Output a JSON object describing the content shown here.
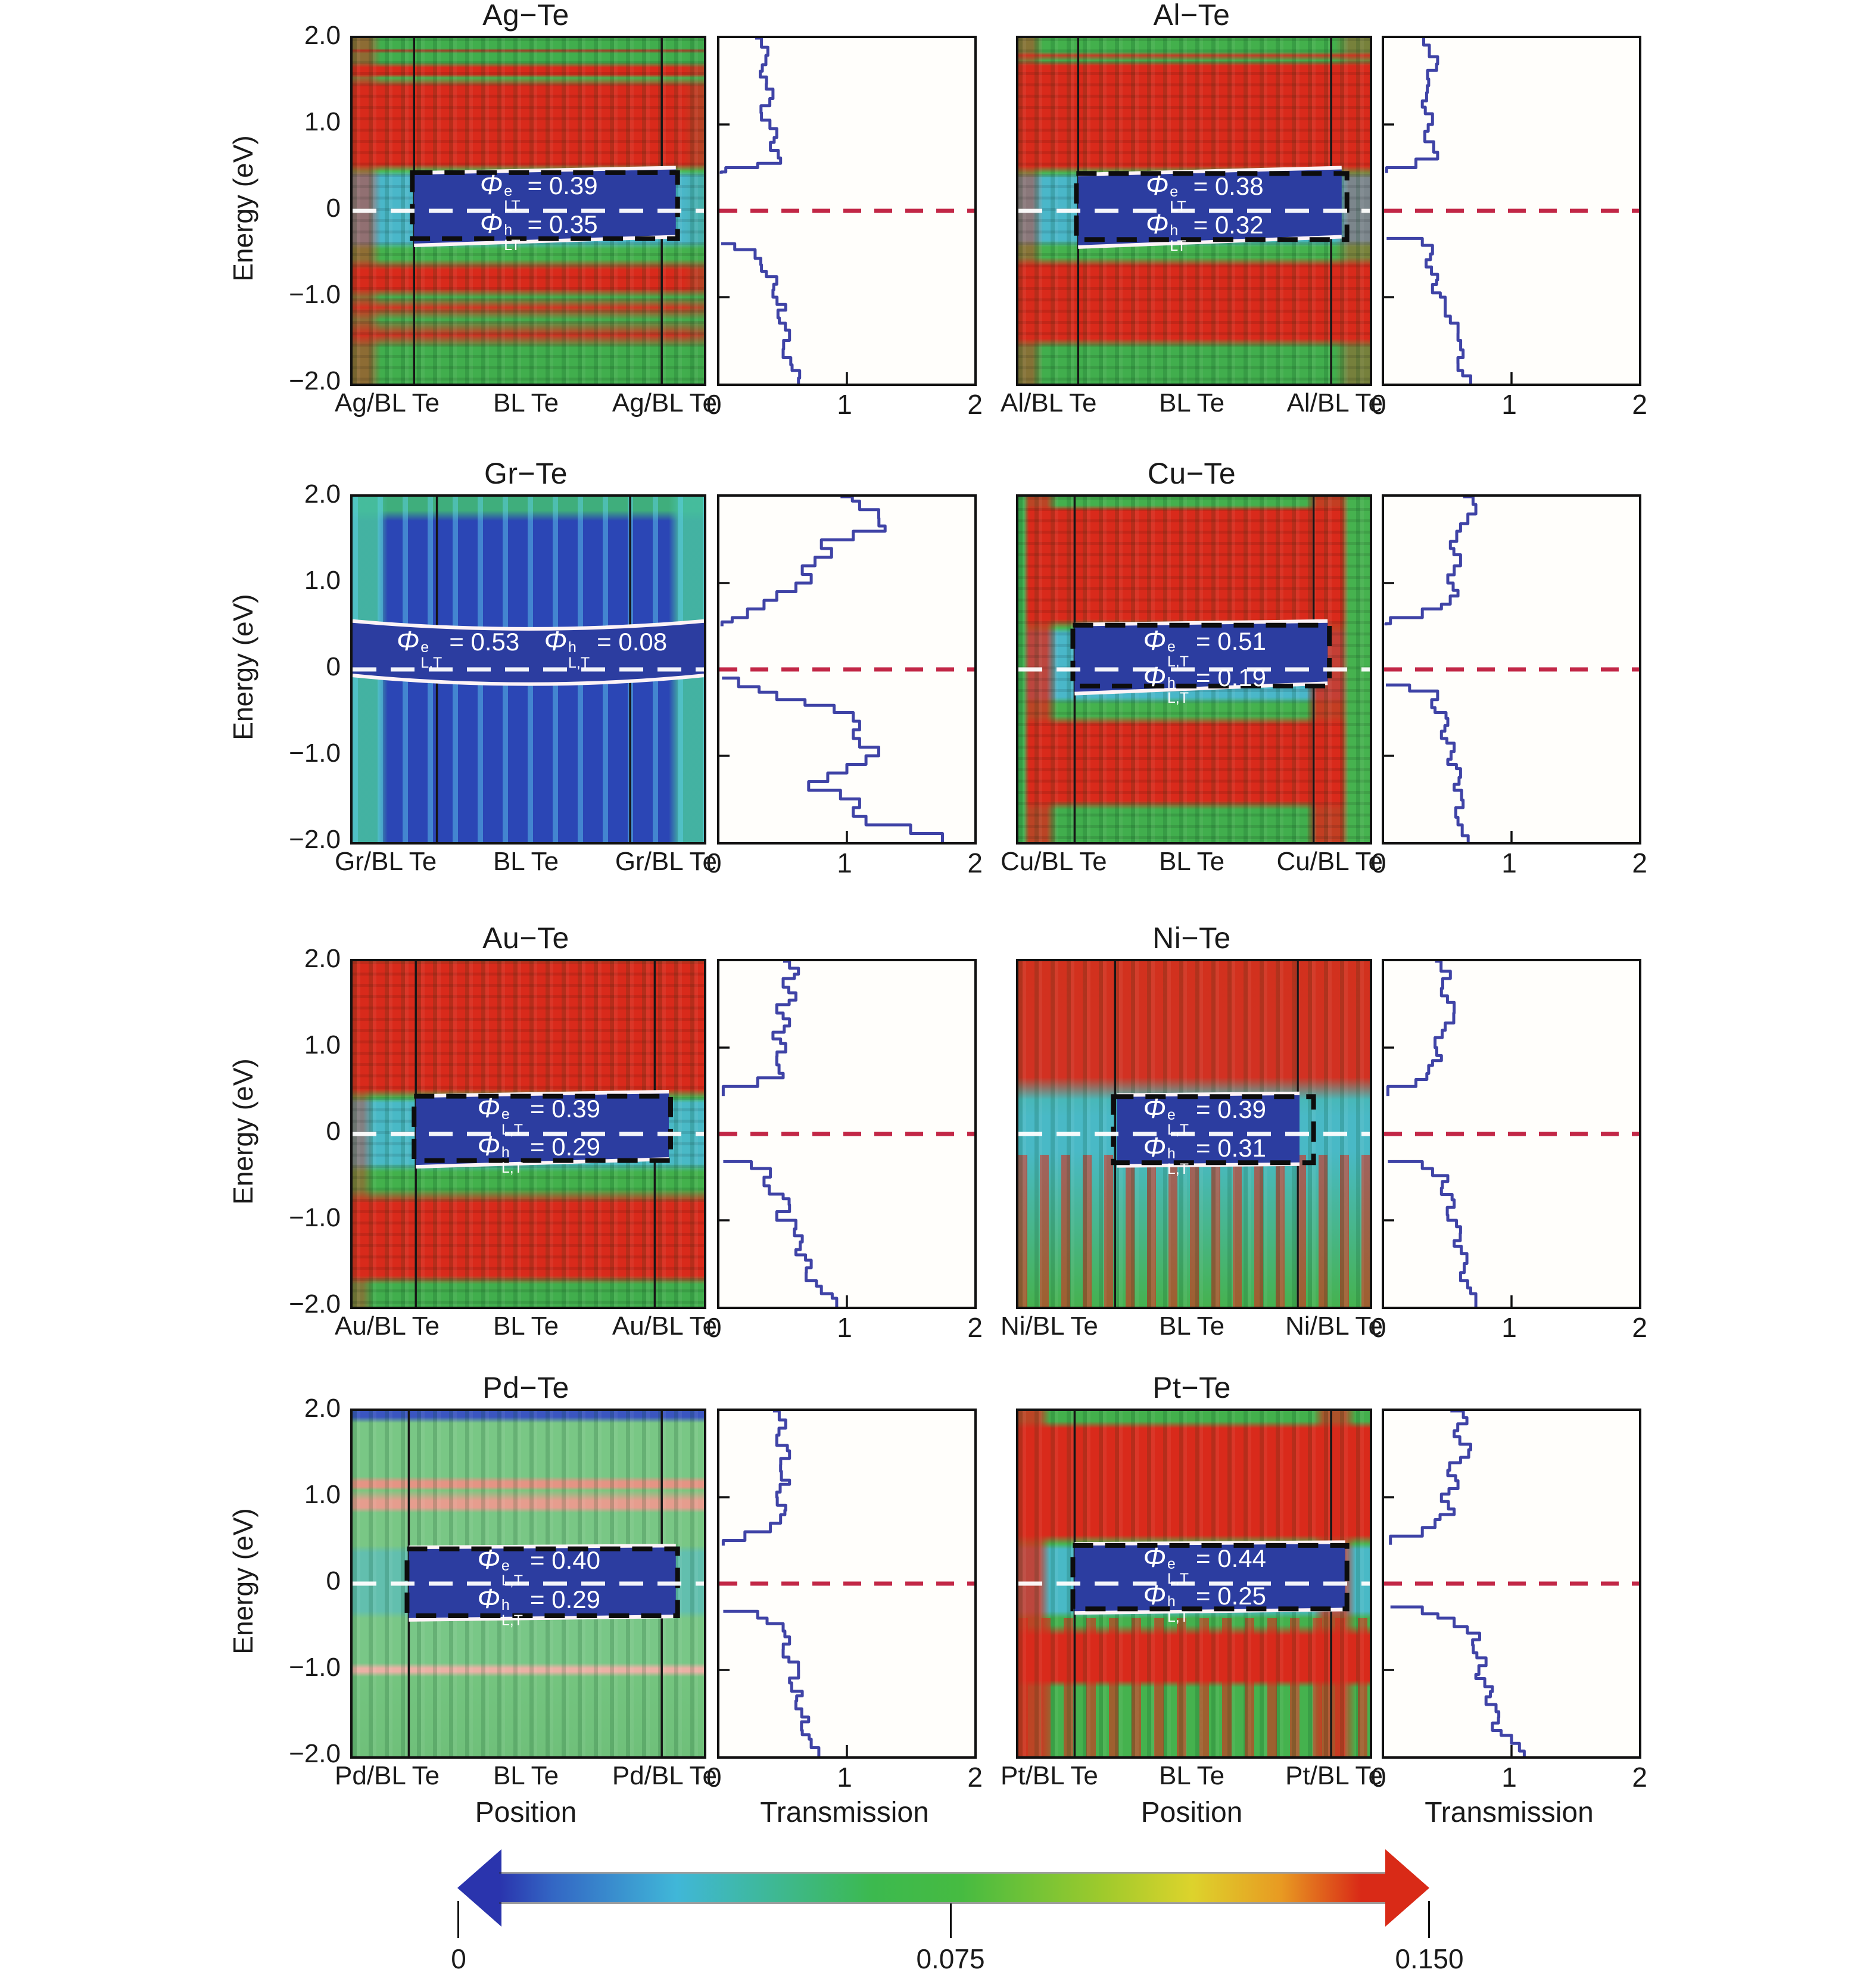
{
  "figure": {
    "position_caption": "Position",
    "transmission_caption": "Transmission"
  },
  "chart_data": {
    "type": "heatmap",
    "description": "Projected local density of states (position vs energy, color = DOS 0 to 0.150) with tunneling-barrier annotations and zero-bias transmission spectra for eight metal/bilayer-tellurene junctions.",
    "energy_axis": {
      "label": "Energy (eV)",
      "range": [
        -2,
        2
      ],
      "ticks": [
        "2.0",
        "1.0",
        "0",
        "−1.0",
        "−2.0"
      ]
    },
    "position_axis": {
      "label": "Position"
    },
    "transmission_axis": {
      "label": "Transmission",
      "range": [
        0,
        2
      ],
      "ticks": [
        "0",
        "1",
        "2"
      ]
    },
    "colorbar": {
      "min": 0,
      "mid": 0.075,
      "max": 0.15,
      "ticks": [
        "0",
        "0.075",
        "0.150"
      ]
    },
    "panels": [
      {
        "id": "ag",
        "title": "Ag−Te",
        "x_labels": [
          "Ag/BL Te",
          "BL Te",
          "Ag/BL Te"
        ],
        "phi_e": {
          "sym": "Φ",
          "sup": "e",
          "sub": "LT",
          "eq": "= 0.39",
          "value": 0.39
        },
        "phi_h": {
          "sym": "Φ",
          "sup": "h",
          "sub": "LT",
          "eq": "= 0.35",
          "value": 0.35
        },
        "interfaces": [
          0.175,
          0.88
        ],
        "band": {
          "x0": 0.175,
          "x1": 0.92,
          "top": [
            0.44,
            0.5
          ],
          "bottom": [
            -0.4,
            -0.3
          ],
          "box": true
        },
        "transmission_upper": [
          [
            2,
            0.28
          ],
          [
            1.8,
            0.38
          ],
          [
            1.55,
            0.32
          ],
          [
            1.3,
            0.42
          ],
          [
            1.05,
            0.33
          ],
          [
            0.85,
            0.45
          ],
          [
            0.7,
            0.4
          ],
          [
            0.55,
            0.48
          ],
          [
            0.5,
            0.3
          ],
          [
            0.45,
            0.05
          ],
          [
            0.43,
            0.0
          ]
        ],
        "transmission_lower": [
          [
            -0.38,
            0.0
          ],
          [
            -0.45,
            0.12
          ],
          [
            -0.55,
            0.28
          ],
          [
            -0.7,
            0.33
          ],
          [
            -0.85,
            0.45
          ],
          [
            -1.0,
            0.42
          ],
          [
            -1.15,
            0.52
          ],
          [
            -1.3,
            0.47
          ],
          [
            -1.5,
            0.55
          ],
          [
            -1.7,
            0.5
          ],
          [
            -1.85,
            0.57
          ],
          [
            -2,
            0.62
          ]
        ]
      },
      {
        "id": "al",
        "title": "Al−Te",
        "x_labels": [
          "Al/BL Te",
          "BL Te",
          "Al/BL Te"
        ],
        "phi_e": {
          "sym": "Φ",
          "sup": "e",
          "sub": "LT",
          "eq": "= 0.38",
          "value": 0.38
        },
        "phi_h": {
          "sym": "Φ",
          "sup": "h",
          "sub": "LT",
          "eq": "= 0.32",
          "value": 0.32
        },
        "interfaces": [
          0.17,
          0.89
        ],
        "band": {
          "x0": 0.17,
          "x1": 0.92,
          "top": [
            0.42,
            0.5
          ],
          "bottom": [
            -0.42,
            -0.3
          ],
          "box": true
        },
        "transmission_upper": [
          [
            2,
            0.3
          ],
          [
            1.7,
            0.42
          ],
          [
            1.45,
            0.35
          ],
          [
            1.2,
            0.3
          ],
          [
            1.0,
            0.38
          ],
          [
            0.8,
            0.32
          ],
          [
            0.6,
            0.42
          ],
          [
            0.5,
            0.25
          ],
          [
            0.44,
            0.02
          ]
        ],
        "transmission_lower": [
          [
            -0.32,
            0.02
          ],
          [
            -0.4,
            0.3
          ],
          [
            -0.5,
            0.38
          ],
          [
            -0.65,
            0.33
          ],
          [
            -0.8,
            0.42
          ],
          [
            -0.95,
            0.38
          ],
          [
            -1.1,
            0.48
          ],
          [
            -1.3,
            0.52
          ],
          [
            -1.5,
            0.58
          ],
          [
            -1.7,
            0.62
          ],
          [
            -1.85,
            0.58
          ],
          [
            -2,
            0.68
          ]
        ]
      },
      {
        "id": "gr",
        "title": "Gr−Te",
        "x_labels": [
          "Gr/BL Te",
          "BL Te",
          "Gr/BL Te"
        ],
        "phi_e": {
          "sym": "Φ",
          "sup": "e",
          "sub": "L,T",
          "eq": "= 0.53",
          "value": 0.53
        },
        "phi_h": {
          "sym": "Φ",
          "sup": "h",
          "sub": "L,T",
          "eq": "= 0.08",
          "value": 0.08
        },
        "interfaces": [
          0.24,
          0.79
        ],
        "band": {
          "x0": 0,
          "x1": 1,
          "top": [
            0.56,
            0.47,
            0.56
          ],
          "bottom": [
            -0.07,
            -0.17,
            -0.07
          ],
          "curved": true,
          "box": false,
          "side_by_side": true
        },
        "transmission_upper": [
          [
            2,
            0.95
          ],
          [
            1.85,
            1.1
          ],
          [
            1.75,
            1.25
          ],
          [
            1.6,
            1.3
          ],
          [
            1.5,
            1.05
          ],
          [
            1.4,
            0.8
          ],
          [
            1.3,
            0.88
          ],
          [
            1.2,
            0.75
          ],
          [
            1.1,
            0.65
          ],
          [
            1.0,
            0.72
          ],
          [
            0.9,
            0.6
          ],
          [
            0.8,
            0.45
          ],
          [
            0.7,
            0.35
          ],
          [
            0.6,
            0.22
          ],
          [
            0.55,
            0.1
          ],
          [
            0.5,
            0.02
          ]
        ],
        "transmission_lower": [
          [
            -0.1,
            0.02
          ],
          [
            -0.2,
            0.15
          ],
          [
            -0.35,
            0.45
          ],
          [
            -0.5,
            0.9
          ],
          [
            -0.6,
            1.05
          ],
          [
            -0.7,
            1.1
          ],
          [
            -0.8,
            1.05
          ],
          [
            -0.9,
            1.1
          ],
          [
            -1.0,
            1.25
          ],
          [
            -1.1,
            1.15
          ],
          [
            -1.2,
            1.0
          ],
          [
            -1.3,
            0.85
          ],
          [
            -1.4,
            0.7
          ],
          [
            -1.5,
            0.95
          ],
          [
            -1.6,
            1.1
          ],
          [
            -1.7,
            1.05
          ],
          [
            -1.8,
            1.15
          ],
          [
            -1.9,
            1.5
          ],
          [
            -2,
            1.75
          ]
        ]
      },
      {
        "id": "cu",
        "title": "Cu−Te",
        "x_labels": [
          "Cu/BL Te",
          "BL Te",
          "Cu/BL Te"
        ],
        "phi_e": {
          "sym": "Φ",
          "sup": "e",
          "sub": "L,T",
          "eq": "= 0.51",
          "value": 0.51
        },
        "phi_h": {
          "sym": "Φ",
          "sup": "h",
          "sub": "L,T",
          "eq": "= 0.19",
          "value": 0.19
        },
        "interfaces": [
          0.16,
          0.84
        ],
        "band": {
          "x0": 0.16,
          "x1": 0.88,
          "top": [
            0.52,
            0.56
          ],
          "bottom": [
            -0.28,
            -0.16
          ],
          "box": true
        },
        "transmission_upper": [
          [
            2,
            0.62
          ],
          [
            1.8,
            0.72
          ],
          [
            1.6,
            0.6
          ],
          [
            1.4,
            0.52
          ],
          [
            1.2,
            0.6
          ],
          [
            1.0,
            0.5
          ],
          [
            0.85,
            0.58
          ],
          [
            0.7,
            0.45
          ],
          [
            0.6,
            0.3
          ],
          [
            0.53,
            0.05
          ],
          [
            0.51,
            0.0
          ]
        ],
        "transmission_lower": [
          [
            -0.18,
            0.0
          ],
          [
            -0.25,
            0.2
          ],
          [
            -0.35,
            0.42
          ],
          [
            -0.5,
            0.4
          ],
          [
            -0.65,
            0.5
          ],
          [
            -0.8,
            0.45
          ],
          [
            -0.95,
            0.55
          ],
          [
            -1.1,
            0.5
          ],
          [
            -1.25,
            0.6
          ],
          [
            -1.4,
            0.55
          ],
          [
            -1.6,
            0.62
          ],
          [
            -1.8,
            0.58
          ],
          [
            -2,
            0.66
          ]
        ]
      },
      {
        "id": "au",
        "title": "Au−Te",
        "x_labels": [
          "Au/BL Te",
          "BL Te",
          "Au/BL Te"
        ],
        "phi_e": {
          "sym": "Φ",
          "sup": "e",
          "sub": "L,T",
          "eq": "= 0.39",
          "value": 0.39
        },
        "phi_h": {
          "sym": "Φ",
          "sup": "h",
          "sub": "L,T",
          "eq": "= 0.29",
          "value": 0.29
        },
        "interfaces": [
          0.18,
          0.86
        ],
        "band": {
          "x0": 0.18,
          "x1": 0.9,
          "top": [
            0.44,
            0.49
          ],
          "bottom": [
            -0.38,
            -0.29
          ],
          "box": true
        },
        "transmission_upper": [
          [
            2,
            0.5
          ],
          [
            1.85,
            0.62
          ],
          [
            1.7,
            0.5
          ],
          [
            1.55,
            0.6
          ],
          [
            1.4,
            0.45
          ],
          [
            1.25,
            0.55
          ],
          [
            1.1,
            0.42
          ],
          [
            0.95,
            0.52
          ],
          [
            0.8,
            0.45
          ],
          [
            0.65,
            0.5
          ],
          [
            0.55,
            0.3
          ],
          [
            0.44,
            0.03
          ]
        ],
        "transmission_lower": [
          [
            -0.32,
            0.03
          ],
          [
            -0.4,
            0.25
          ],
          [
            -0.5,
            0.4
          ],
          [
            -0.6,
            0.35
          ],
          [
            -0.75,
            0.5
          ],
          [
            -0.9,
            0.55
          ],
          [
            -1.0,
            0.45
          ],
          [
            -1.1,
            0.6
          ],
          [
            -1.25,
            0.65
          ],
          [
            -1.4,
            0.6
          ],
          [
            -1.55,
            0.72
          ],
          [
            -1.7,
            0.68
          ],
          [
            -1.85,
            0.8
          ],
          [
            -2,
            0.92
          ]
        ]
      },
      {
        "id": "ni",
        "title": "Ni−Te",
        "x_labels": [
          "Ni/BL Te",
          "BL Te",
          "Ni/BL Te"
        ],
        "phi_e": {
          "sym": "Φ",
          "sup": "e",
          "sub": "L,T",
          "eq": "= 0.39",
          "value": 0.39
        },
        "phi_h": {
          "sym": "Φ",
          "sup": "h",
          "sub": "L,T",
          "eq": "= 0.31",
          "value": 0.31
        },
        "interfaces": [
          0.275,
          0.795
        ],
        "band": {
          "x0": 0.28,
          "x1": 0.8,
          "top": [
            0.45,
            0.47
          ],
          "bottom": [
            -0.37,
            -0.35
          ],
          "box": true
        },
        "transmission_upper": [
          [
            2,
            0.4
          ],
          [
            1.8,
            0.52
          ],
          [
            1.6,
            0.45
          ],
          [
            1.4,
            0.55
          ],
          [
            1.2,
            0.48
          ],
          [
            1.0,
            0.4
          ],
          [
            0.85,
            0.45
          ],
          [
            0.7,
            0.35
          ],
          [
            0.55,
            0.25
          ],
          [
            0.44,
            0.03
          ]
        ],
        "transmission_lower": [
          [
            -0.32,
            0.03
          ],
          [
            -0.4,
            0.3
          ],
          [
            -0.55,
            0.5
          ],
          [
            -0.7,
            0.45
          ],
          [
            -0.85,
            0.55
          ],
          [
            -1.0,
            0.5
          ],
          [
            -1.15,
            0.6
          ],
          [
            -1.3,
            0.55
          ],
          [
            -1.5,
            0.65
          ],
          [
            -1.7,
            0.6
          ],
          [
            -1.85,
            0.68
          ],
          [
            -2,
            0.72
          ]
        ]
      },
      {
        "id": "pd",
        "title": "Pd−Te",
        "x_labels": [
          "Pd/BL Te",
          "BL Te",
          "Pd/BL Te"
        ],
        "phi_e": {
          "sym": "Φ",
          "sup": "e",
          "sub": "L,T",
          "eq": "= 0.40",
          "value": 0.4
        },
        "phi_h": {
          "sym": "Φ",
          "sup": "h",
          "sub": "L,T",
          "eq": "= 0.29",
          "value": 0.29
        },
        "interfaces": [
          0.16,
          0.88
        ],
        "band": {
          "x0": 0.16,
          "x1": 0.92,
          "top": [
            0.42,
            0.44
          ],
          "bottom": [
            -0.42,
            -0.38
          ],
          "box": true
        },
        "transmission_upper": [
          [
            2,
            0.42
          ],
          [
            1.8,
            0.52
          ],
          [
            1.6,
            0.45
          ],
          [
            1.45,
            0.55
          ],
          [
            1.3,
            0.48
          ],
          [
            1.15,
            0.55
          ],
          [
            1.0,
            0.45
          ],
          [
            0.85,
            0.52
          ],
          [
            0.7,
            0.48
          ],
          [
            0.6,
            0.4
          ],
          [
            0.5,
            0.2
          ],
          [
            0.44,
            0.03
          ]
        ],
        "transmission_lower": [
          [
            -0.32,
            0.03
          ],
          [
            -0.4,
            0.3
          ],
          [
            -0.55,
            0.5
          ],
          [
            -0.7,
            0.55
          ],
          [
            -0.85,
            0.5
          ],
          [
            -1.0,
            0.62
          ],
          [
            -1.15,
            0.55
          ],
          [
            -1.3,
            0.65
          ],
          [
            -1.45,
            0.6
          ],
          [
            -1.6,
            0.7
          ],
          [
            -1.75,
            0.65
          ],
          [
            -1.9,
            0.72
          ],
          [
            -2,
            0.78
          ]
        ]
      },
      {
        "id": "pt",
        "title": "Pt−Te",
        "x_labels": [
          "Pt/BL Te",
          "BL Te",
          "Pt/BL Te"
        ],
        "phi_e": {
          "sym": "Φ",
          "sup": "e",
          "sub": "L,T",
          "eq": "= 0.44",
          "value": 0.44
        },
        "phi_h": {
          "sym": "Φ",
          "sup": "h",
          "sub": "L,T",
          "eq": "= 0.25",
          "value": 0.25
        },
        "interfaces": [
          0.16,
          0.89
        ],
        "band": {
          "x0": 0.16,
          "x1": 0.93,
          "top": [
            0.46,
            0.48
          ],
          "bottom": [
            -0.34,
            -0.3
          ],
          "box": true
        },
        "transmission_upper": [
          [
            2,
            0.52
          ],
          [
            1.85,
            0.65
          ],
          [
            1.7,
            0.55
          ],
          [
            1.55,
            0.68
          ],
          [
            1.4,
            0.6
          ],
          [
            1.25,
            0.5
          ],
          [
            1.1,
            0.58
          ],
          [
            0.95,
            0.45
          ],
          [
            0.8,
            0.55
          ],
          [
            0.65,
            0.4
          ],
          [
            0.55,
            0.3
          ],
          [
            0.45,
            0.05
          ]
        ],
        "transmission_lower": [
          [
            -0.27,
            0.05
          ],
          [
            -0.35,
            0.3
          ],
          [
            -0.5,
            0.55
          ],
          [
            -0.65,
            0.75
          ],
          [
            -0.8,
            0.7
          ],
          [
            -0.95,
            0.8
          ],
          [
            -1.1,
            0.72
          ],
          [
            -1.25,
            0.85
          ],
          [
            -1.4,
            0.8
          ],
          [
            -1.55,
            0.9
          ],
          [
            -1.7,
            0.85
          ],
          [
            -1.85,
            1.0
          ],
          [
            -2,
            1.1
          ]
        ]
      }
    ]
  }
}
